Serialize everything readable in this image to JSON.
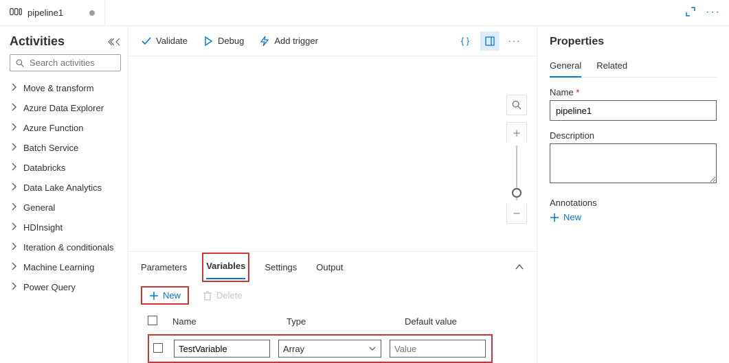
{
  "tab": {
    "title": "pipeline1"
  },
  "sidebar": {
    "title": "Activities",
    "search_placeholder": "Search activities",
    "items": [
      "Move & transform",
      "Azure Data Explorer",
      "Azure Function",
      "Batch Service",
      "Databricks",
      "Data Lake Analytics",
      "General",
      "HDInsight",
      "Iteration & conditionals",
      "Machine Learning",
      "Power Query"
    ]
  },
  "toolbar": {
    "validate": "Validate",
    "debug": "Debug",
    "add_trigger": "Add trigger"
  },
  "bottom": {
    "tabs": {
      "parameters": "Parameters",
      "variables": "Variables",
      "settings": "Settings",
      "output": "Output"
    },
    "new_label": "New",
    "delete_label": "Delete",
    "columns": {
      "name": "Name",
      "type": "Type",
      "value": "Default value"
    },
    "row": {
      "name": "TestVariable",
      "type": "Array",
      "value": "Value"
    },
    "highlight_color": "#d13438"
  },
  "props": {
    "title": "Properties",
    "tabs": {
      "general": "General",
      "related": "Related"
    },
    "name_label": "Name",
    "name_value": "pipeline1",
    "desc_label": "Description",
    "desc_value": "",
    "ann_label": "Annotations",
    "ann_new": "New"
  },
  "colors": {
    "accent": "#0078d4",
    "danger": "#d13438",
    "border": "#605e5c"
  }
}
